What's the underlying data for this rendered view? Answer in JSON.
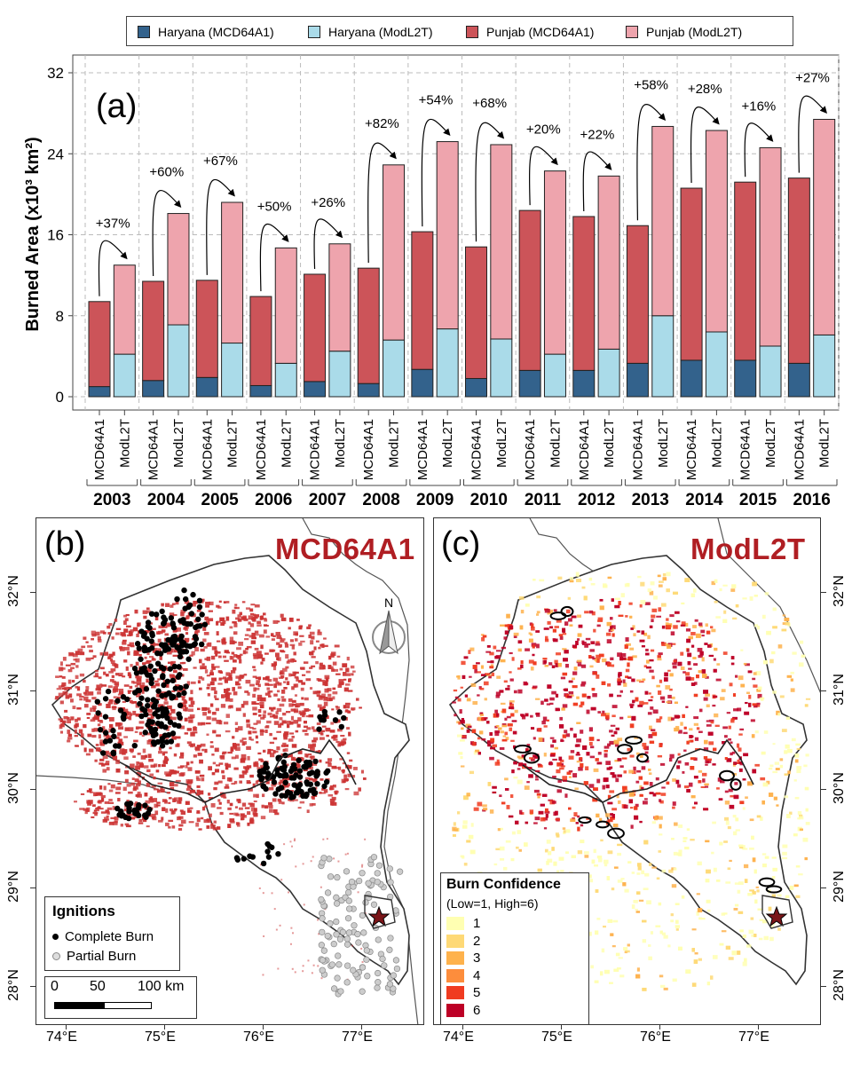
{
  "legend": {
    "items": [
      {
        "label": "Haryana (MCD64A1)",
        "color": "#33628c"
      },
      {
        "label": "Haryana (ModL2T)",
        "color": "#aadbe9"
      },
      {
        "label": "Punjab (MCD64A1)",
        "color": "#cc5459"
      },
      {
        "label": "Punjab (ModL2T)",
        "color": "#eea4ad"
      }
    ]
  },
  "chart_data": {
    "type": "bar",
    "panel_label": "(a)",
    "ylabel": "Burned Area (x10³ km²)",
    "ylim": [
      0,
      32
    ],
    "yticks": [
      "0",
      "8",
      "16",
      "24",
      "32"
    ],
    "years": [
      "2003",
      "2004",
      "2005",
      "2006",
      "2007",
      "2008",
      "2009",
      "2010",
      "2011",
      "2012",
      "2013",
      "2014",
      "2015",
      "2016"
    ],
    "products": [
      "MCD64A1",
      "ModL2T"
    ],
    "series": [
      {
        "name": "Haryana (MCD64A1)",
        "values": [
          1.0,
          1.6,
          1.9,
          1.1,
          1.5,
          1.3,
          2.7,
          1.8,
          2.6,
          2.6,
          3.3,
          3.6,
          3.6,
          3.3
        ]
      },
      {
        "name": "Punjab (MCD64A1)",
        "values": [
          8.4,
          9.8,
          9.6,
          8.8,
          10.6,
          11.4,
          13.6,
          13.0,
          15.8,
          15.2,
          13.6,
          17.0,
          17.6,
          18.3
        ]
      },
      {
        "name": "Haryana (ModL2T)",
        "values": [
          4.2,
          7.1,
          5.3,
          3.3,
          4.5,
          5.6,
          6.7,
          5.7,
          4.2,
          4.7,
          8.0,
          6.4,
          5.0,
          6.1
        ]
      },
      {
        "name": "Punjab (ModL2T)",
        "values": [
          8.8,
          11.0,
          13.9,
          11.4,
          10.6,
          17.3,
          18.5,
          19.2,
          18.1,
          17.1,
          18.7,
          19.9,
          19.6,
          21.3
        ]
      }
    ],
    "increase_labels": [
      "+37%",
      "+60%",
      "+67%",
      "+50%",
      "+26%",
      "+82%",
      "+54%",
      "+68%",
      "+20%",
      "+22%",
      "+58%",
      "+28%",
      "+16%",
      "+27%"
    ]
  },
  "map_b": {
    "panel_label": "(b)",
    "title": "MCD64A1",
    "north_label": "N",
    "ignitions_title": "Ignitions",
    "complete_burn": "Complete Burn",
    "partial_burn": "Partial Burn",
    "scale_labels": [
      "0",
      "50",
      "100 km"
    ],
    "colors": {
      "burn": "#cc3333",
      "complete": "#000000",
      "partial": "#cccccc"
    }
  },
  "map_c": {
    "panel_label": "(c)",
    "title": "ModL2T",
    "conf_title": "Burn Confidence",
    "conf_subtitle": "(Low=1, High=6)",
    "conf_levels": [
      {
        "label": "1",
        "color": "#ffffb2"
      },
      {
        "label": "2",
        "color": "#fed976"
      },
      {
        "label": "3",
        "color": "#feb24c"
      },
      {
        "label": "4",
        "color": "#fd8d3c"
      },
      {
        "label": "5",
        "color": "#f03b20"
      },
      {
        "label": "6",
        "color": "#bd0026"
      }
    ]
  },
  "lat_labels": [
    "32°N",
    "31°N",
    "30°N",
    "29°N",
    "28°N"
  ],
  "lon_labels": [
    "74°E",
    "75°E",
    "76°E",
    "77°E"
  ]
}
